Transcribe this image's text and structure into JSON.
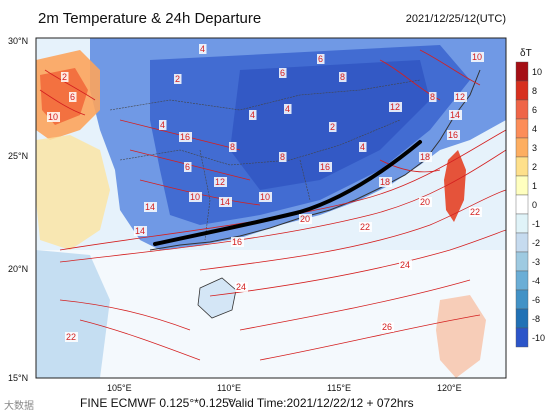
{
  "title": "2m Temperature & 24h Departure",
  "timestamp": "2021/12/25/12(UTC)",
  "footer": {
    "model": "FINE ECMWF 0.125°*0.125°",
    "valid_time": "Valid Time:2021/12/22/12 + 072hrs",
    "watermark": "大数据"
  },
  "axes": {
    "lat_labels": [
      "30°N",
      "25°N",
      "20°N",
      "15°N"
    ],
    "lon_labels": [
      "105°E",
      "110°E",
      "115°E",
      "120°E"
    ]
  },
  "colorbar": {
    "title": "δT",
    "labels": [
      "10",
      "8",
      "6",
      "4",
      "3",
      "2",
      "1",
      "0",
      "-1",
      "-2",
      "-3",
      "-4",
      "-6",
      "-8",
      "-10"
    ],
    "colors": [
      "#a50f15",
      "#d7301f",
      "#ef6548",
      "#fc8d59",
      "#fdae61",
      "#fee08b",
      "#ffffbf",
      "#ffffff",
      "#e0f3f8",
      "#c6dbef",
      "#9ecae1",
      "#6baed6",
      "#4292c6",
      "#2171b5",
      "#2c55c9"
    ]
  },
  "contour_labels": [
    "10",
    "2",
    "6",
    "2",
    "4",
    "6",
    "4",
    "4",
    "8",
    "8",
    "10",
    "10",
    "12",
    "14",
    "16",
    "18",
    "18",
    "20",
    "22",
    "24",
    "24",
    "26",
    "22",
    "20",
    "16",
    "14",
    "12",
    "10",
    "6",
    "8",
    "6",
    "4",
    "2",
    "4",
    "8",
    "12",
    "16",
    "14",
    "14",
    "16",
    "22"
  ],
  "colors": {
    "cold": "#3d6fd8",
    "contour": "#d42020",
    "front": "#000000"
  }
}
